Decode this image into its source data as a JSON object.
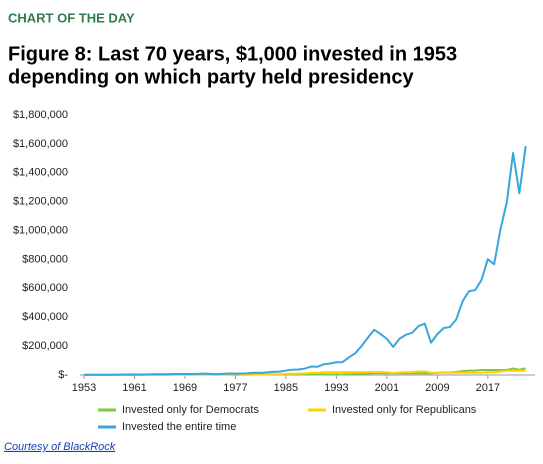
{
  "kicker": "CHART OF THE DAY",
  "source": "Courtesy of BlackRock",
  "chart_data": {
    "type": "line",
    "title": [
      "Figure 8: Last 70 years, $1,000 invested in 1953",
      "depending on which party held presidency"
    ],
    "x": [
      1953,
      1954,
      1955,
      1956,
      1957,
      1958,
      1959,
      1960,
      1961,
      1962,
      1963,
      1964,
      1965,
      1966,
      1967,
      1968,
      1969,
      1970,
      1971,
      1972,
      1973,
      1974,
      1975,
      1976,
      1977,
      1978,
      1979,
      1980,
      1981,
      1982,
      1983,
      1984,
      1985,
      1986,
      1987,
      1988,
      1989,
      1990,
      1991,
      1992,
      1993,
      1994,
      1995,
      1996,
      1997,
      1998,
      1999,
      2000,
      2001,
      2002,
      2003,
      2004,
      2005,
      2006,
      2007,
      2008,
      2009,
      2010,
      2011,
      2012,
      2013,
      2014,
      2015,
      2016,
      2017,
      2018,
      2019,
      2020,
      2021,
      2022,
      2023
    ],
    "series": [
      {
        "name": "Invested only for Democrats",
        "color": "#7ac943",
        "values": [
          1000,
          1000,
          1000,
          1000,
          1000,
          1000,
          1000,
          1000,
          1250,
          1150,
          1400,
          1600,
          1800,
          1600,
          2000,
          2200,
          2200,
          2200,
          2200,
          2200,
          2200,
          2200,
          2200,
          2200,
          2050,
          2200,
          2600,
          3400,
          3400,
          3400,
          3400,
          3400,
          3400,
          3400,
          3400,
          3400,
          3400,
          3400,
          3400,
          3400,
          3700,
          3750,
          5100,
          6300,
          8400,
          10800,
          13100,
          12000,
          12000,
          12000,
          12000,
          12000,
          12000,
          12000,
          12000,
          12000,
          15000,
          17300,
          17600,
          20400,
          27000,
          30700,
          31100,
          34800,
          34800,
          34800,
          34800,
          34800,
          44800,
          36700,
          46000
        ]
      },
      {
        "name": "Invested only for Republicans",
        "color": "#ffd200",
        "values": [
          1000,
          1500,
          2000,
          2100,
          1900,
          2700,
          3000,
          3000,
          3000,
          3000,
          3000,
          3000,
          3000,
          3000,
          3000,
          3000,
          2700,
          2800,
          3200,
          3800,
          3200,
          2400,
          3200,
          4000,
          4000,
          4000,
          4000,
          4000,
          3800,
          4600,
          5600,
          6000,
          7800,
          9200,
          9700,
          11300,
          14900,
          14400,
          18800,
          20200,
          20200,
          20200,
          20200,
          20200,
          20200,
          20200,
          20200,
          20200,
          18000,
          14000,
          18000,
          20000,
          21000,
          24000,
          25400,
          16000,
          16000,
          16000,
          16000,
          16000,
          16000,
          16000,
          16000,
          16000,
          19500,
          18600,
          24500,
          29000,
          29000,
          29000,
          29000
        ]
      },
      {
        "name": "Invested the entire time",
        "color": "#3aa6dc",
        "values": [
          1000,
          1500,
          2000,
          2100,
          2000,
          2900,
          3300,
          3300,
          4100,
          3700,
          4500,
          5300,
          5900,
          5300,
          6600,
          7300,
          6700,
          7000,
          8000,
          9500,
          8100,
          6000,
          8200,
          10100,
          9400,
          10000,
          11800,
          15600,
          14800,
          18000,
          22000,
          23300,
          30700,
          36300,
          38200,
          44500,
          58600,
          56700,
          74000,
          79600,
          88200,
          89300,
          122700,
          150900,
          201000,
          258600,
          313000,
          284000,
          250000,
          195000,
          251000,
          278000,
          292000,
          338000,
          356000,
          224000,
          283000,
          325000,
          332000,
          385000,
          510000,
          580000,
          588000,
          658000,
          802000,
          767000,
          1008000,
          1194000,
          1537000,
          1258000,
          1585000
        ]
      }
    ],
    "xlim": [
      1953,
      2024
    ],
    "xticks": [
      1953,
      1961,
      1969,
      1977,
      1985,
      1993,
      2001,
      2009,
      2017
    ],
    "ylim": [
      0,
      1800000
    ],
    "yticks": [
      {
        "value": 0,
        "label": "$-"
      },
      {
        "value": 200000,
        "label": "$200,000"
      },
      {
        "value": 400000,
        "label": "$400,000"
      },
      {
        "value": 600000,
        "label": "$600,000"
      },
      {
        "value": 800000,
        "label": "$800,000"
      },
      {
        "value": 1000000,
        "label": "$1,000,000"
      },
      {
        "value": 1200000,
        "label": "$1,200,000"
      },
      {
        "value": 1400000,
        "label": "$1,400,000"
      },
      {
        "value": 1600000,
        "label": "$1,600,000"
      },
      {
        "value": 1800000,
        "label": "$1,800,000"
      }
    ],
    "grid": false
  }
}
